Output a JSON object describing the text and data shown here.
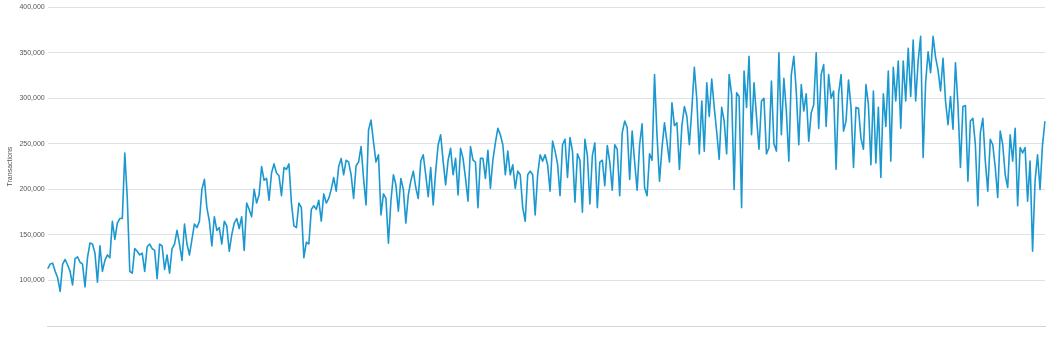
{
  "chart_data": {
    "type": "line",
    "ylabel": "Transactions",
    "ylim": [
      50000,
      400000
    ],
    "yticks": [
      {
        "value": 50000,
        "label": null
      },
      {
        "value": 100000,
        "label": "100,000"
      },
      {
        "value": 150000,
        "label": "150,000"
      },
      {
        "value": 200000,
        "label": "200,000"
      },
      {
        "value": 250000,
        "label": "250,000"
      },
      {
        "value": 300000,
        "label": "300,000"
      },
      {
        "value": 350000,
        "label": "350,000"
      },
      {
        "value": 400000,
        "label": "400,000"
      }
    ],
    "grid": "y",
    "tick_labels": "y",
    "marker": "none",
    "line_style": "solid",
    "categories": [
      null,
      null,
      null,
      null,
      null,
      null,
      null,
      null,
      null,
      null,
      null,
      null,
      null,
      null,
      null,
      null,
      null,
      null,
      null,
      null,
      null,
      null,
      null,
      null,
      null,
      null,
      null,
      null,
      null,
      null,
      null,
      null,
      null,
      null,
      null,
      null,
      null,
      null,
      null,
      null,
      null,
      null,
      null,
      null,
      null,
      null,
      null,
      null,
      null,
      null,
      null,
      null,
      null,
      null,
      null,
      null,
      null,
      null,
      null,
      null,
      null,
      null,
      null,
      null,
      null,
      null,
      null,
      null,
      null,
      null,
      null,
      null,
      null,
      null,
      null,
      null,
      null,
      null,
      null,
      null,
      null,
      null,
      null,
      null,
      null,
      null,
      null,
      null,
      null,
      null,
      null,
      null,
      null,
      null,
      null,
      null,
      null,
      null,
      null,
      null,
      null,
      null,
      null,
      null,
      null,
      null,
      null,
      null,
      null,
      null,
      null,
      null,
      null,
      null,
      null,
      null,
      null,
      null,
      null,
      null,
      null,
      null,
      null,
      null,
      null,
      null,
      null,
      null,
      null,
      null,
      null,
      null,
      null,
      null,
      null,
      null,
      null,
      null,
      null,
      null,
      null,
      null,
      null,
      null,
      null,
      null,
      null,
      null,
      null,
      null,
      null,
      null,
      null,
      null,
      null,
      null,
      null,
      null,
      null,
      null,
      null,
      null,
      null,
      null,
      null,
      null,
      null,
      null,
      null,
      null,
      null,
      null,
      null,
      null,
      null,
      null,
      null,
      null,
      null,
      null,
      null,
      null,
      null,
      null,
      null,
      null,
      null,
      null,
      null,
      null,
      null,
      null,
      null,
      null,
      null,
      null,
      null,
      null,
      null,
      null,
      null,
      null,
      null,
      null,
      null,
      null,
      null,
      null,
      null,
      null,
      null,
      null,
      null,
      null,
      null,
      null,
      null,
      null,
      null,
      null,
      null,
      null,
      null,
      null,
      null,
      null,
      null,
      null,
      null,
      null,
      null,
      null,
      null,
      null,
      null,
      null,
      null,
      null,
      null,
      null,
      null,
      null,
      null,
      null,
      null,
      null,
      null,
      null,
      null,
      null,
      null,
      null,
      null,
      null,
      null,
      null,
      null,
      null,
      null,
      null,
      null,
      null,
      null,
      null,
      null,
      null,
      null,
      null,
      null,
      null,
      null,
      null,
      null,
      null,
      null,
      null,
      null,
      null,
      null,
      null,
      null,
      null,
      null,
      null,
      null,
      null,
      null,
      null,
      null,
      null,
      null,
      null,
      null,
      null,
      null,
      null,
      null,
      null,
      null,
      null,
      null,
      null,
      null,
      null,
      null,
      null,
      null,
      null,
      null,
      null,
      null,
      null,
      null,
      null,
      null,
      null,
      null,
      null,
      null,
      null,
      null,
      null,
      null,
      null,
      null,
      null,
      null,
      null,
      null,
      null,
      null,
      null,
      null,
      null,
      null,
      null,
      null,
      null,
      null,
      null,
      null,
      null,
      null,
      null,
      null,
      null,
      null,
      null,
      null,
      null,
      null,
      null,
      null,
      null,
      null,
      null,
      null,
      null,
      null,
      null,
      null,
      null,
      null,
      null,
      null,
      null,
      null,
      null,
      null,
      null,
      null,
      null,
      null,
      null,
      null,
      null,
      null,
      null,
      null,
      null,
      null,
      null,
      null,
      null,
      null,
      null,
      null,
      null,
      null,
      null,
      null,
      null,
      null,
      null,
      null,
      null,
      null,
      null,
      null,
      null,
      null,
      null
    ],
    "series": [
      {
        "color": "#1a98cf",
        "values": [
          113000,
          118000,
          119000,
          110000,
          103000,
          88000,
          118000,
          123000,
          117000,
          110000,
          95000,
          124000,
          126000,
          120000,
          118000,
          93000,
          125000,
          141000,
          140000,
          130000,
          98000,
          138000,
          110000,
          122000,
          128000,
          125000,
          165000,
          145000,
          163000,
          168000,
          168000,
          240000,
          190000,
          110000,
          108000,
          135000,
          132000,
          128000,
          130000,
          110000,
          137000,
          140000,
          135000,
          133000,
          102000,
          140000,
          138000,
          112000,
          128000,
          108000,
          135000,
          140000,
          155000,
          140000,
          122000,
          162000,
          140000,
          128000,
          145000,
          162000,
          158000,
          165000,
          200000,
          211000,
          180000,
          165000,
          138000,
          170000,
          155000,
          158000,
          140000,
          165000,
          160000,
          132000,
          150000,
          163000,
          168000,
          157000,
          170000,
          133000,
          185000,
          178000,
          170000,
          200000,
          185000,
          194000,
          225000,
          210000,
          212000,
          188000,
          218000,
          228000,
          218000,
          215000,
          193000,
          224000,
          222000,
          228000,
          185000,
          160000,
          158000,
          185000,
          180000,
          125000,
          142000,
          140000,
          178000,
          182000,
          178000,
          188000,
          165000,
          195000,
          185000,
          190000,
          200000,
          213000,
          198000,
          225000,
          234000,
          216000,
          232000,
          230000,
          216000,
          190000,
          226000,
          230000,
          247000,
          212000,
          183000,
          265000,
          276000,
          252000,
          230000,
          238000,
          172000,
          195000,
          190000,
          141000,
          187000,
          216000,
          205000,
          176000,
          212000,
          200000,
          163000,
          194000,
          209000,
          220000,
          202000,
          190000,
          231000,
          238000,
          216000,
          192000,
          224000,
          183000,
          220000,
          249000,
          260000,
          231000,
          205000,
          232000,
          245000,
          216000,
          234000,
          194000,
          245000,
          234000,
          212000,
          187000,
          247000,
          232000,
          230000,
          180000,
          234000,
          234000,
          212000,
          243000,
          201000,
          232000,
          251000,
          267000,
          260000,
          249000,
          216000,
          242000,
          216000,
          227000,
          201000,
          220000,
          216000,
          180000,
          165000,
          216000,
          220000,
          216000,
          172000,
          216000,
          238000,
          231000,
          238000,
          227000,
          198000,
          253000,
          242000,
          228000,
          193000,
          249000,
          255000,
          213000,
          257000,
          242000,
          186000,
          239000,
          232000,
          175000,
          255000,
          237000,
          184000,
          237000,
          251000,
          180000,
          230000,
          232000,
          204000,
          248000,
          230000,
          199000,
          249000,
          244000,
          193000,
          262000,
          275000,
          268000,
          211000,
          264000,
          230000,
          199000,
          249000,
          272000,
          202000,
          193000,
          239000,
          232000,
          326000,
          259000,
          209000,
          246000,
          273000,
          252000,
          230000,
          295000,
          270000,
          273000,
          222000,
          270000,
          291000,
          280000,
          249000,
          288000,
          334000,
          299000,
          239000,
          297000,
          242000,
          317000,
          280000,
          321000,
          290000,
          263000,
          233000,
          290000,
          275000,
          239000,
          326000,
          304000,
          200000,
          306000,
          302000,
          180000,
          330000,
          290000,
          346000,
          260000,
          317000,
          280000,
          244000,
          297000,
          300000,
          239000,
          246000,
          319000,
          250000,
          242000,
          350000,
          260000,
          322000,
          286000,
          231000,
          326000,
          346000,
          307000,
          249000,
          315000,
          286000,
          305000,
          253000,
          284000,
          293000,
          350000,
          267000,
          326000,
          337000,
          269000,
          326000,
          300000,
          308000,
          222000,
          305000,
          326000,
          264000,
          275000,
          320000,
          290000,
          224000,
          290000,
          289000,
          256000,
          244000,
          315000,
          293000,
          227000,
          308000,
          229000,
          290000,
          213000,
          305000,
          269000,
          330000,
          231000,
          334000,
          297000,
          341000,
          267000,
          341000,
          297000,
          355000,
          302000,
          364000,
          297000,
          341000,
          368000,
          235000,
          317000,
          351000,
          328000,
          368000,
          345000,
          331000,
          308000,
          344000,
          297000,
          271000,
          302000,
          266000,
          339000,
          293000,
          224000,
          291000,
          292000,
          209000,
          275000,
          278000,
          249000,
          182000,
          262000,
          278000,
          231000,
          198000,
          255000,
          249000,
          224000,
          191000,
          264000,
          249000,
          216000,
          202000,
          260000,
          231000,
          267000,
          182000,
          246000,
          240000,
          246000,
          187000,
          231000,
          132000,
          209000,
          238000,
          200000,
          249000,
          275000
        ]
      }
    ]
  }
}
